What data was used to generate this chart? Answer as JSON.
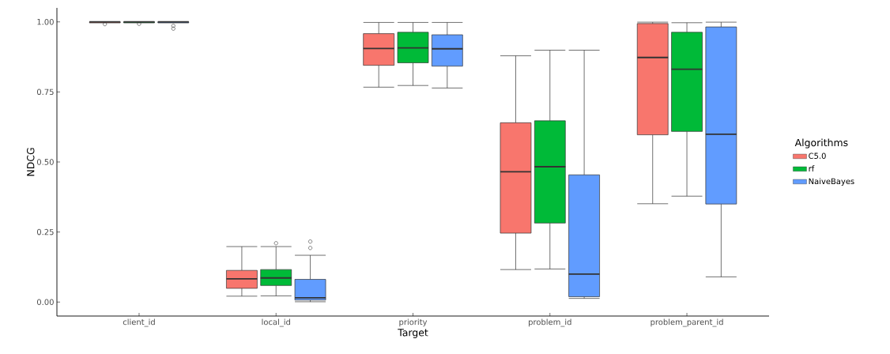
{
  "chart_data": {
    "type": "box",
    "xlabel": "Target",
    "ylabel": "NDCG",
    "legend_title": "Algorithms",
    "legend": "right",
    "grid": false,
    "categories": [
      "client_id",
      "local_id",
      "priority",
      "problem_id",
      "problem_parent_id"
    ],
    "ylim": [
      -0.05,
      1.05
    ],
    "yticks": [
      {
        "value": 0,
        "label": "0.00"
      },
      {
        "value": 0.25,
        "label": "0.25"
      },
      {
        "value": 0.5,
        "label": "0.50"
      },
      {
        "value": 0.75,
        "label": "0.75"
      },
      {
        "value": 1,
        "label": "1.00"
      }
    ],
    "series": [
      {
        "name": "C5.0",
        "color": "#f8766d",
        "boxes": [
          {
            "low": 0.997,
            "q1": 0.997,
            "median": 1,
            "q3": 1,
            "high": 1,
            "outliers": [
              0.992
            ]
          },
          {
            "low": 0.021,
            "q1": 0.049,
            "median": 0.083,
            "q3": 0.113,
            "high": 0.198
          },
          {
            "low": 0.767,
            "q1": 0.845,
            "median": 0.905,
            "q3": 0.958,
            "high": 0.998
          },
          {
            "low": 0.116,
            "q1": 0.246,
            "median": 0.465,
            "q3": 0.64,
            "high": 0.879
          },
          {
            "low": 0.351,
            "q1": 0.597,
            "median": 0.873,
            "q3": 0.994,
            "high": 0.999
          }
        ]
      },
      {
        "name": "rf",
        "color": "#00ba38",
        "boxes": [
          {
            "low": 0.997,
            "q1": 0.997,
            "median": 1,
            "q3": 1,
            "high": 1,
            "outliers": [
              0.993
            ]
          },
          {
            "low": 0.022,
            "q1": 0.059,
            "median": 0.086,
            "q3": 0.116,
            "high": 0.198,
            "outliers": [
              0.21
            ]
          },
          {
            "low": 0.773,
            "q1": 0.854,
            "median": 0.907,
            "q3": 0.963,
            "high": 0.998
          },
          {
            "low": 0.118,
            "q1": 0.282,
            "median": 0.483,
            "q3": 0.647,
            "high": 0.899
          },
          {
            "low": 0.378,
            "q1": 0.609,
            "median": 0.831,
            "q3": 0.963,
            "high": 0.997
          }
        ]
      },
      {
        "name": "NaiveBayes",
        "color": "#619cff",
        "boxes": [
          {
            "low": 0.997,
            "q1": 0.997,
            "median": 1,
            "q3": 1,
            "high": 1,
            "outliers": [
              0.986,
              0.976
            ]
          },
          {
            "low": 0.001,
            "q1": 0.007,
            "median": 0.015,
            "q3": 0.081,
            "high": 0.167,
            "outliers": [
              0.193,
              0.216
            ]
          },
          {
            "low": 0.764,
            "q1": 0.842,
            "median": 0.904,
            "q3": 0.954,
            "high": 0.998
          },
          {
            "low": 0.013,
            "q1": 0.019,
            "median": 0.1,
            "q3": 0.454,
            "high": 0.899
          },
          {
            "low": 0.09,
            "q1": 0.35,
            "median": 0.599,
            "q3": 0.982,
            "high": 0.999
          }
        ]
      }
    ]
  }
}
